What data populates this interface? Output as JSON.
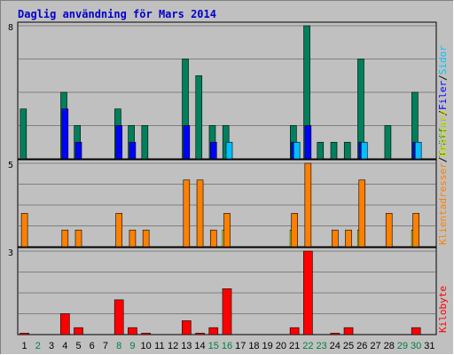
{
  "chart_data": {
    "type": "bar",
    "title": "Daglig användning för Mars 2014",
    "days": [
      {
        "label": "1",
        "weekend": false
      },
      {
        "label": "2",
        "weekend": true
      },
      {
        "label": "3",
        "weekend": false
      },
      {
        "label": "4",
        "weekend": false
      },
      {
        "label": "5",
        "weekend": false
      },
      {
        "label": "6",
        "weekend": false
      },
      {
        "label": "7",
        "weekend": false
      },
      {
        "label": "8",
        "weekend": true
      },
      {
        "label": "9",
        "weekend": true
      },
      {
        "label": "10",
        "weekend": false
      },
      {
        "label": "11",
        "weekend": false
      },
      {
        "label": "12",
        "weekend": false
      },
      {
        "label": "13",
        "weekend": false
      },
      {
        "label": "14",
        "weekend": false
      },
      {
        "label": "15",
        "weekend": true
      },
      {
        "label": "16",
        "weekend": true
      },
      {
        "label": "17",
        "weekend": false
      },
      {
        "label": "18",
        "weekend": false
      },
      {
        "label": "19",
        "weekend": false
      },
      {
        "label": "20",
        "weekend": false
      },
      {
        "label": "21",
        "weekend": false
      },
      {
        "label": "22",
        "weekend": true
      },
      {
        "label": "23",
        "weekend": true
      },
      {
        "label": "24",
        "weekend": false
      },
      {
        "label": "25",
        "weekend": false
      },
      {
        "label": "26",
        "weekend": false
      },
      {
        "label": "27",
        "weekend": false
      },
      {
        "label": "28",
        "weekend": false
      },
      {
        "label": "29",
        "weekend": true
      },
      {
        "label": "30",
        "weekend": true
      },
      {
        "label": "31",
        "weekend": false
      }
    ],
    "panels": [
      {
        "id": "top",
        "ymax": 8,
        "ymax_label": "8",
        "legend": [
          {
            "text": "Träffar",
            "color": "#00805c"
          },
          {
            "text": "/",
            "color": "#000000"
          },
          {
            "text": "Filer",
            "color": "#0000ff"
          },
          {
            "text": "/",
            "color": "#000000"
          },
          {
            "text": "Sidor",
            "color": "#00c0ff"
          }
        ],
        "series": [
          {
            "key": "traffar",
            "color": "#00805c",
            "values": [
              3,
              0,
              0,
              4,
              2,
              0,
              0,
              3,
              2,
              2,
              0,
              0,
              6,
              5,
              2,
              2,
              0,
              0,
              0,
              0,
              2,
              8,
              1,
              1,
              1,
              6,
              0,
              2,
              0,
              4,
              0
            ]
          },
          {
            "key": "filer",
            "color": "#0000ff",
            "values": [
              0,
              0,
              0,
              3,
              1,
              0,
              0,
              2,
              1,
              0,
              0,
              0,
              2,
              0,
              1,
              0,
              0,
              0,
              0,
              0,
              1,
              2,
              0,
              0,
              0,
              1,
              0,
              0,
              0,
              1,
              0
            ]
          },
          {
            "key": "sidor",
            "color": "#00c0ff",
            "values": [
              0,
              0,
              0,
              0,
              0,
              0,
              0,
              0,
              0,
              0,
              0,
              0,
              0,
              0,
              0,
              1,
              0,
              0,
              0,
              0,
              1,
              0,
              0,
              0,
              0,
              1,
              0,
              0,
              0,
              1,
              0
            ]
          }
        ]
      },
      {
        "id": "middle",
        "ymax": 5,
        "ymax_label": "5",
        "legend": [
          {
            "text": "Klientadresser",
            "color": "#ff8000"
          },
          {
            "text": "/",
            "color": "#000000"
          },
          {
            "text": "Besökare",
            "color": "#e0e000"
          }
        ],
        "series": [
          {
            "key": "besokare",
            "color": "#ffff00",
            "values": [
              0,
              0,
              0,
              0,
              0,
              0,
              0,
              0,
              0,
              0,
              0,
              0,
              0,
              0,
              0,
              1,
              0,
              0,
              0,
              0,
              1,
              0,
              0,
              0,
              0,
              1,
              0,
              0,
              0,
              1,
              0
            ]
          },
          {
            "key": "klientadresser",
            "color": "#ff8000",
            "values": [
              2,
              0,
              0,
              1,
              1,
              0,
              0,
              2,
              1,
              1,
              0,
              0,
              4,
              4,
              1,
              2,
              0,
              0,
              0,
              0,
              2,
              5,
              0,
              1,
              1,
              4,
              0,
              2,
              0,
              2,
              0
            ]
          }
        ]
      },
      {
        "id": "bottom",
        "ymax": 3,
        "ymax_label": "3",
        "legend": [
          {
            "text": "Kilobyte",
            "color": "#ff0000"
          }
        ],
        "series": [
          {
            "key": "kilobyte",
            "color": "#ff0000",
            "values": [
              0.05,
              0,
              0,
              0.75,
              0.25,
              0,
              0,
              1.25,
              0.25,
              0.05,
              0,
              0,
              0.5,
              0.05,
              0.25,
              1.65,
              0,
              0,
              0,
              0,
              0.25,
              3,
              0,
              0.05,
              0.25,
              0,
              0,
              0,
              0,
              0.25,
              0
            ]
          }
        ]
      }
    ]
  }
}
